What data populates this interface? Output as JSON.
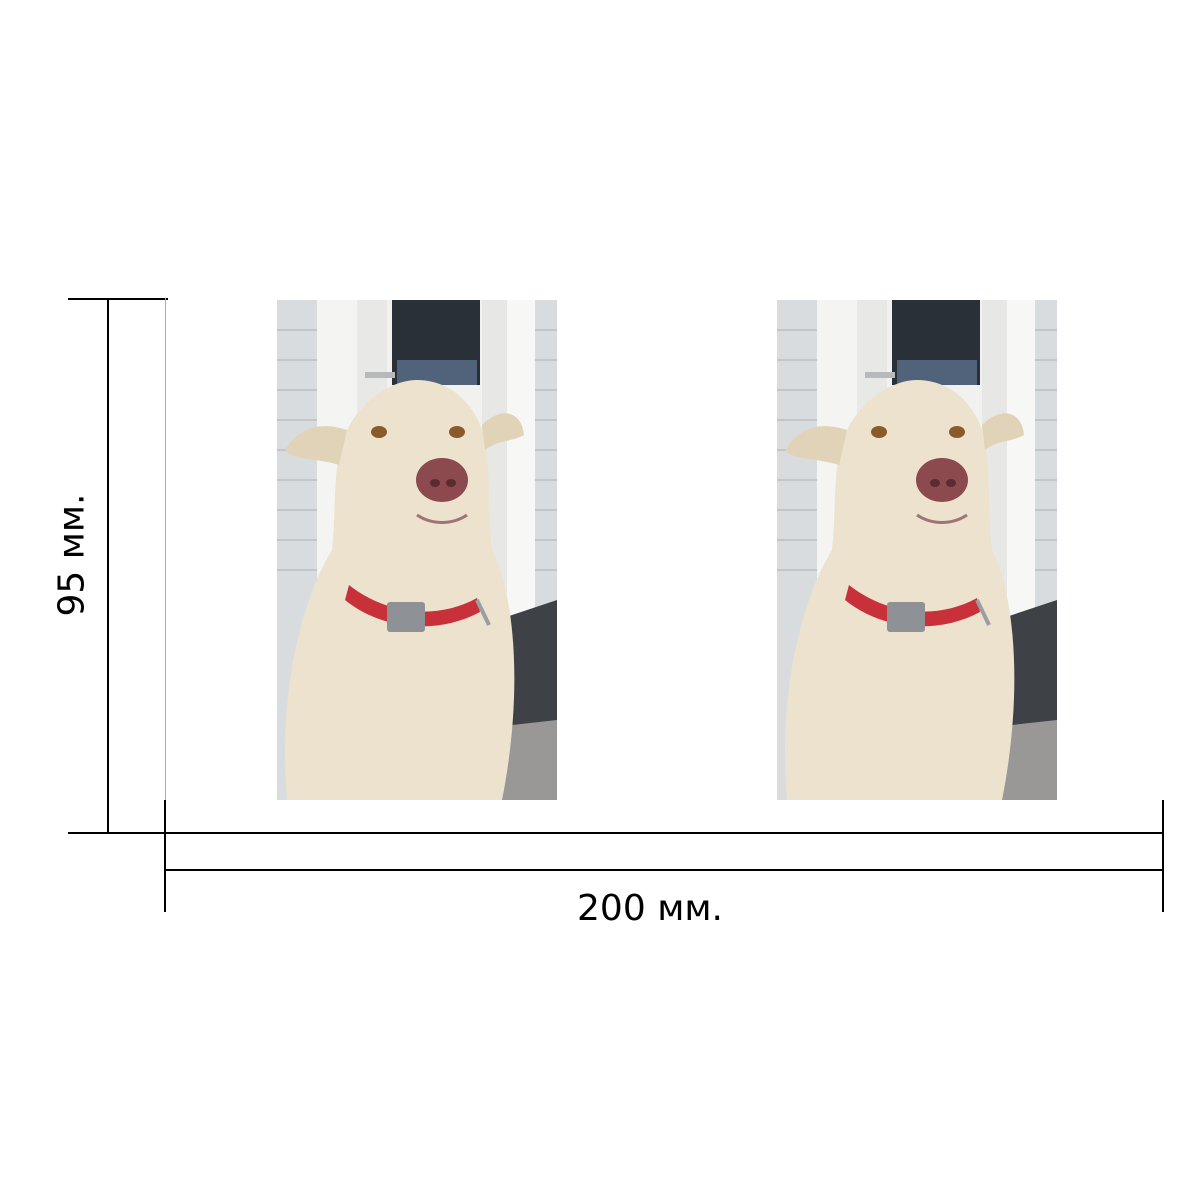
{
  "dimensions": {
    "width_label": "200 мм.",
    "height_label": "95 мм."
  },
  "photos": [
    {
      "subject": "white-dog-with-red-collar"
    },
    {
      "subject": "white-dog-with-red-collar"
    }
  ],
  "colors": {
    "line": "#000000",
    "background": "#ffffff",
    "siding": "#d9dcdf",
    "door_trim": "#f4f4f2",
    "door_window": "#2a3038",
    "deck": "#3e4247",
    "gravel": "#9a9896",
    "dog_fur": "#ece2cd",
    "dog_nose": "#8c4a4f",
    "collar": "#c8303a",
    "buckle": "#8e9196"
  }
}
